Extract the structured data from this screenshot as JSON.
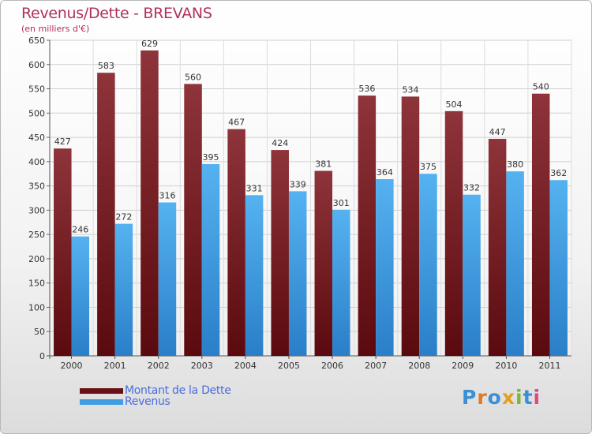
{
  "chart_data": {
    "type": "bar",
    "title": "Revenus/Dette - BREVANS",
    "subtitle": "(en milliers d'€)",
    "categories": [
      "2000",
      "2001",
      "2002",
      "2003",
      "2004",
      "2005",
      "2006",
      "2007",
      "2008",
      "2009",
      "2010",
      "2011"
    ],
    "series": [
      {
        "name": "Montant de la Dette",
        "values": [
          427,
          583,
          629,
          560,
          467,
          424,
          381,
          536,
          534,
          504,
          447,
          540
        ],
        "color": "#7a1f24"
      },
      {
        "name": "Revenus",
        "values": [
          246,
          272,
          316,
          395,
          331,
          339,
          301,
          364,
          375,
          332,
          380,
          362
        ],
        "color": "#3f9ee0"
      }
    ],
    "ylim": [
      0,
      650
    ],
    "yticks": [
      0,
      50,
      100,
      150,
      200,
      250,
      300,
      350,
      400,
      450,
      500,
      550,
      600,
      650
    ],
    "grid": true,
    "legend": "bottom-left"
  },
  "logo": {
    "text": "Proxiti",
    "colors": [
      "#3a8fd6",
      "#e07a20",
      "#3a8fd6",
      "#e0a020",
      "#7ab83a",
      "#3a8fd6",
      "#e04a7a"
    ]
  }
}
